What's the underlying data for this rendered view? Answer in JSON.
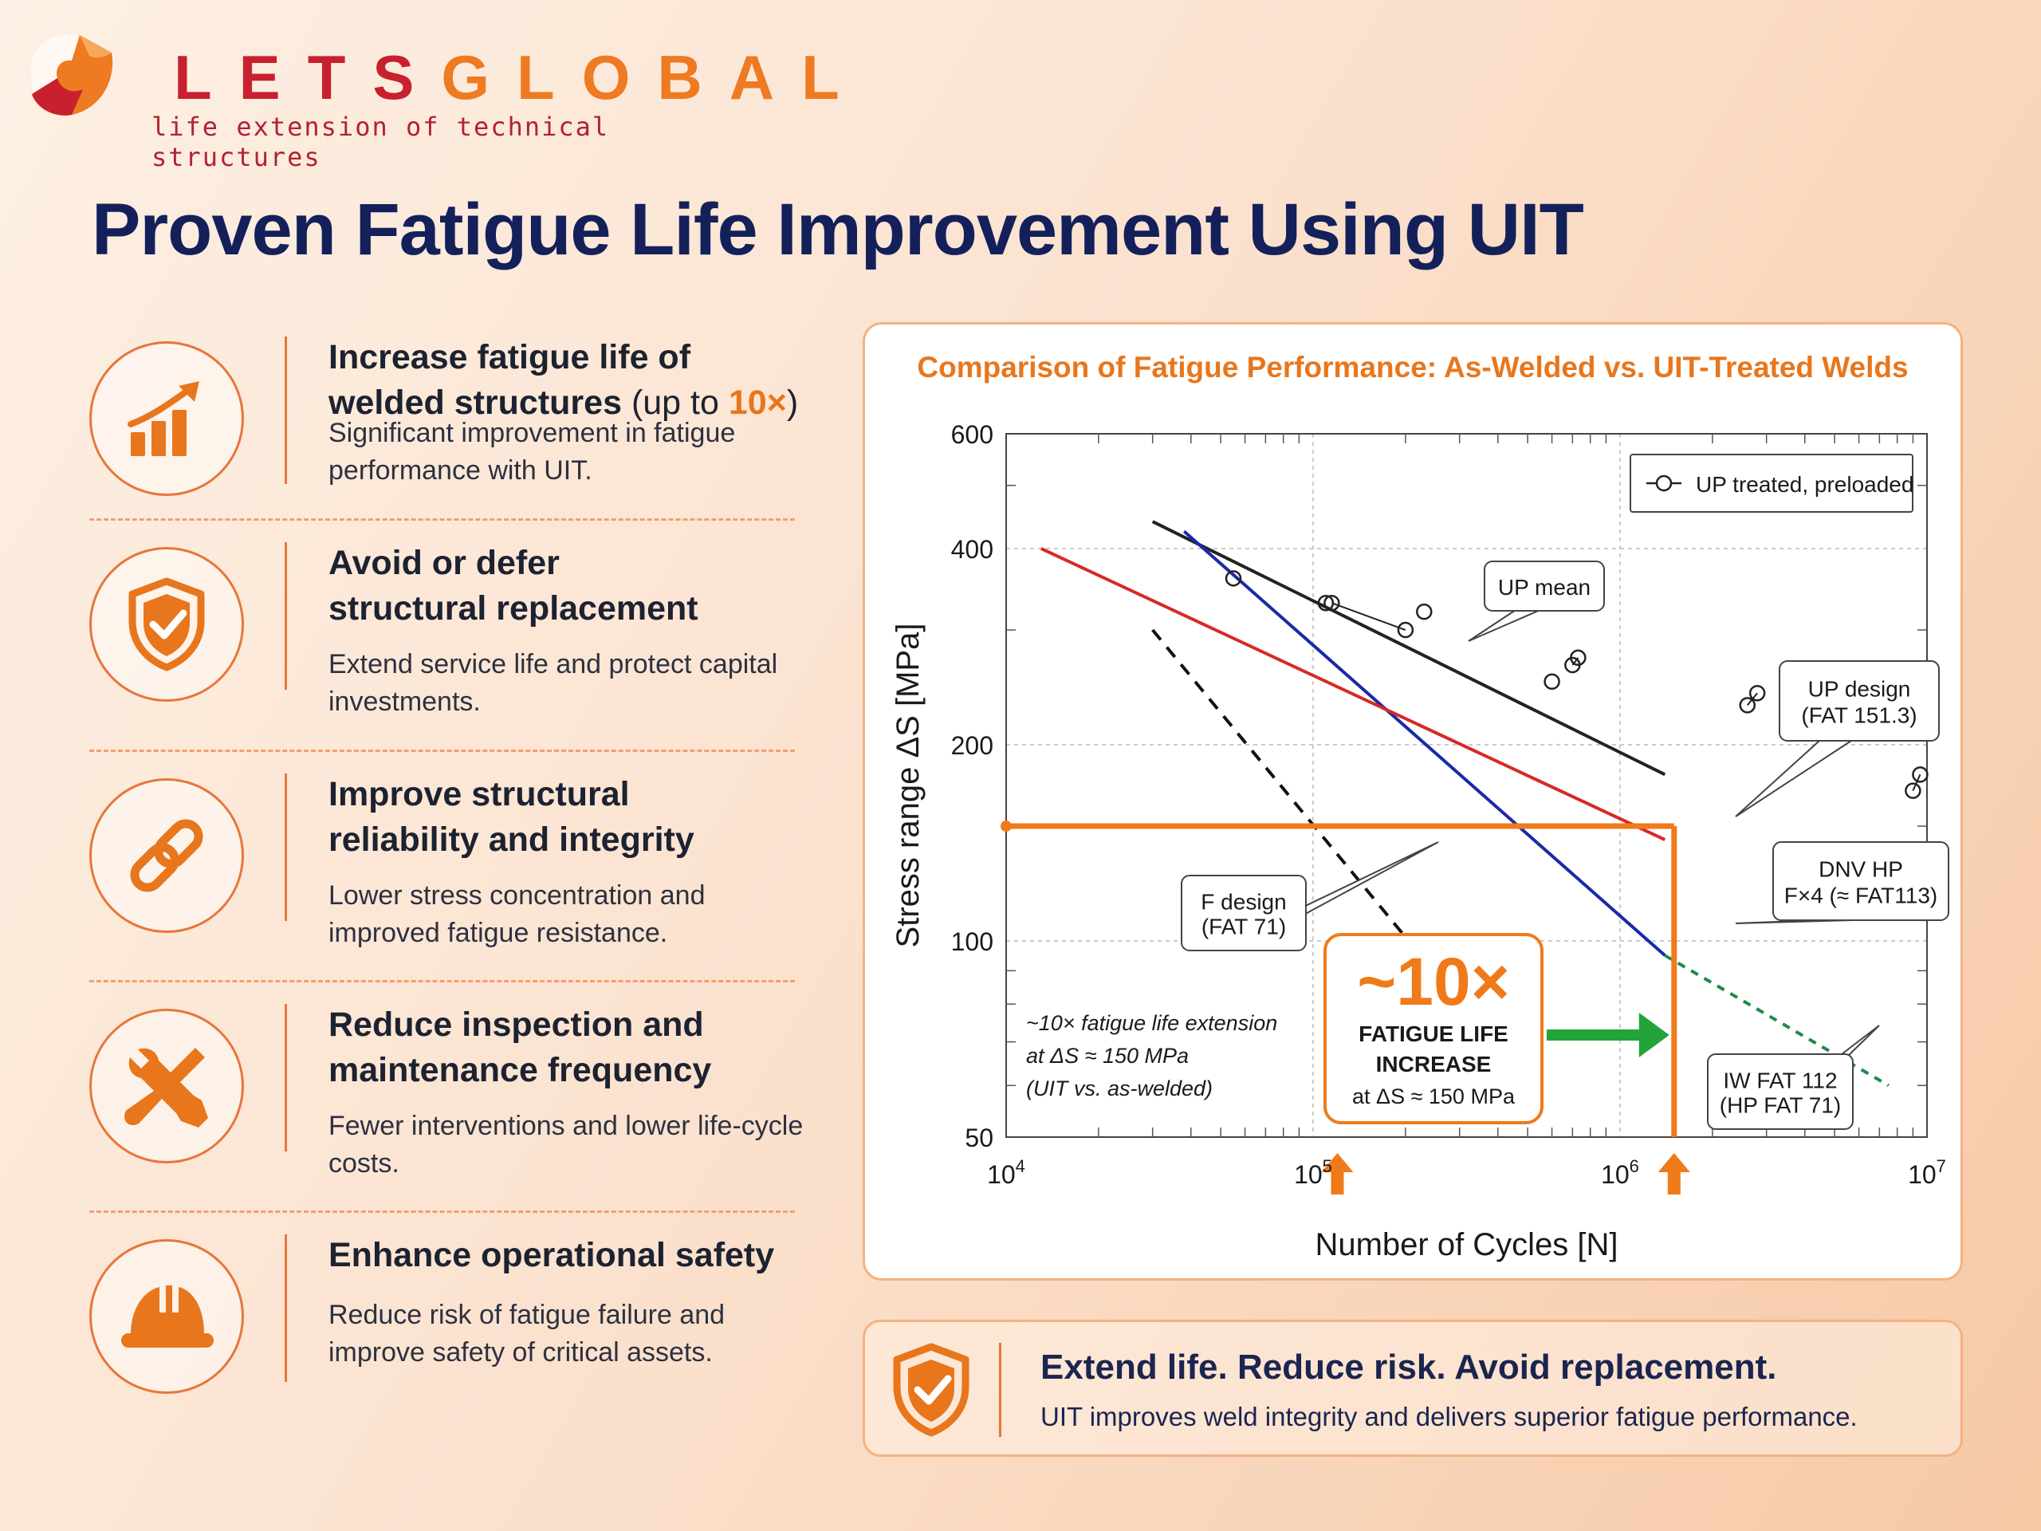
{
  "logo": {
    "name": "LETSGLOBAL",
    "letters": [
      {
        "ch": "L",
        "color": "#c8202e"
      },
      {
        "ch": "E",
        "color": "#c8202e"
      },
      {
        "ch": "T",
        "color": "#c8202e"
      },
      {
        "ch": "S",
        "color": "#c8202e"
      },
      {
        "ch": "G",
        "color": "#ee7a22"
      },
      {
        "ch": "L",
        "color": "#ee7a22"
      },
      {
        "ch": "O",
        "color": "#ee7a22"
      },
      {
        "ch": "B",
        "color": "#ee7a22"
      },
      {
        "ch": "A",
        "color": "#ee7a22"
      },
      {
        "ch": "L",
        "color": "#ee7a22"
      }
    ],
    "tagline": "life extension of technical structures"
  },
  "title": "Proven Fatigue Life Improvement Using UIT",
  "features": [
    {
      "icon": "growth-chart-icon",
      "head1": "Increase fatigue life of",
      "head2": "welded structures",
      "head2_extra_pre": " (up to ",
      "head2_hl": "10×",
      "head2_extra_post": ")",
      "desc": "Significant improvement in fatigue performance with UIT."
    },
    {
      "icon": "shield-check-icon",
      "head1": "Avoid or defer",
      "head2": "structural replacement",
      "desc": "Extend service life and protect capital investments."
    },
    {
      "icon": "chain-link-icon",
      "head1": "Improve structural",
      "head2": "reliability and integrity",
      "desc": "Lower stress concentration and improved fatigue resistance."
    },
    {
      "icon": "wrench-screwdriver-icon",
      "head1": "Reduce inspection and",
      "head2": "maintenance frequency",
      "desc": "Fewer interventions and lower life-cycle costs."
    },
    {
      "icon": "hard-hat-icon",
      "head1": "Enhance operational safety",
      "head2": "",
      "desc": "Reduce risk of fatigue failure and improve safety of critical assets."
    }
  ],
  "chart_data": {
    "type": "line",
    "title": "Comparison of Fatigue Performance: As-Welded vs. UIT-Treated Welds",
    "xlabel": "Number of Cycles [N]",
    "ylabel": "Stress range ΔS [MPa]",
    "xscale": "log",
    "yscale": "log",
    "xlim": [
      10000,
      10000000
    ],
    "ylim": [
      50,
      600
    ],
    "x_ticks": [
      {
        "base": "10",
        "exp": "4"
      },
      {
        "base": "10",
        "exp": "5"
      },
      {
        "base": "10",
        "exp": "6"
      },
      {
        "base": "10",
        "exp": "7"
      }
    ],
    "y_ticks": [
      "600",
      "400",
      "200",
      "100",
      "50"
    ],
    "grid": true,
    "legend": {
      "position": "top-right",
      "entries": [
        "UP treated, preloaded"
      ]
    },
    "series": [
      {
        "name": "UP mean",
        "color": "#222222",
        "style": "solid",
        "points": [
          [
            30000,
            440
          ],
          [
            1400000,
            180
          ]
        ]
      },
      {
        "name": "UP design (FAT 151.3)",
        "color": "#1a2aa8",
        "style": "solid",
        "points": [
          [
            38000,
            425
          ],
          [
            1400000,
            95
          ]
        ]
      },
      {
        "name": "",
        "color": "#1e8a4a",
        "style": "dashed",
        "points": [
          [
            1400000,
            95
          ],
          [
            7500000,
            60
          ]
        ]
      },
      {
        "name": "DNV HP F×4 (≈ FAT113)",
        "color": "#d62a25",
        "style": "solid",
        "points": [
          [
            13000,
            400
          ],
          [
            1400000,
            143
          ]
        ]
      },
      {
        "name": "F design (FAT 71)",
        "color": "#111111",
        "style": "dashed",
        "points": [
          [
            30000,
            300
          ],
          [
            500000,
            60
          ]
        ]
      }
    ],
    "scatter": {
      "name": "UP treated, preloaded",
      "points": [
        [
          55000,
          360
        ],
        [
          110000,
          330
        ],
        [
          115000,
          330
        ],
        [
          200000,
          300
        ],
        [
          230000,
          320
        ],
        [
          600000,
          250
        ],
        [
          700000,
          265
        ],
        [
          730000,
          272
        ],
        [
          2600000,
          230
        ],
        [
          2800000,
          240
        ],
        [
          9000000,
          170
        ],
        [
          9500000,
          180
        ]
      ]
    },
    "reference": {
      "stress": 150,
      "n_as_welded": 100000,
      "n_uit": 1500000,
      "color": "#f07a1a"
    },
    "callouts": {
      "up_mean": "UP mean",
      "up_design": [
        "UP design",
        "(FAT 151.3)"
      ],
      "dnv_hp": [
        "DNV HP",
        "F×4 (≈ FAT113)"
      ],
      "f_design": [
        "F design",
        "(FAT 71)"
      ],
      "iw_fat": [
        "IW FAT 112",
        "(HP FAT 71)"
      ]
    },
    "annotation": [
      "~10× fatigue life extension",
      "at ΔS ≈ 150 MPa",
      "(UIT vs. as-welded)"
    ],
    "badge": {
      "big": "~10×",
      "line1": "FATIGUE LIFE",
      "line2": "INCREASE",
      "line3": "at ΔS ≈ 150 MPa"
    }
  },
  "banner": {
    "title": "Extend life. Reduce risk. Avoid replacement.",
    "subtitle": "UIT improves weld integrity and delivers superior fatigue performance."
  }
}
